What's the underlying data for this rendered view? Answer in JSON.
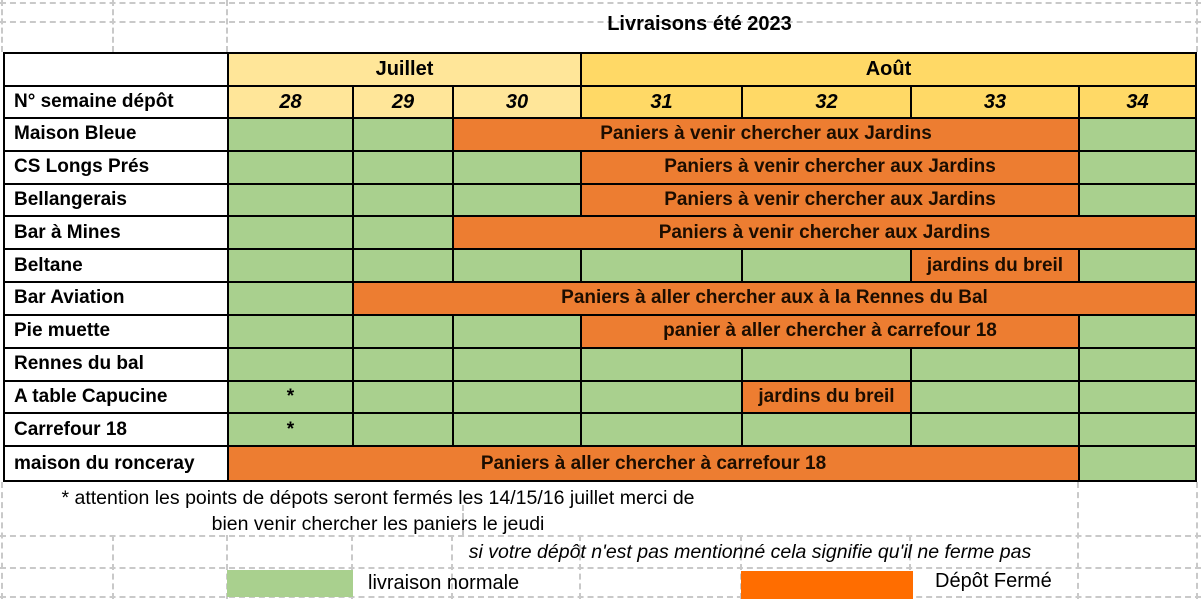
{
  "title": "Livraisons été 2023",
  "header": {
    "week_header_label": "N° semaine dépôt",
    "months": [
      {
        "label": "Juillet",
        "span": 3
      },
      {
        "label": "Août",
        "span": 4
      }
    ],
    "weeks": [
      "28",
      "29",
      "30",
      "31",
      "32",
      "33",
      "34"
    ]
  },
  "rows": [
    {
      "depot": "Maison Bleue",
      "cells": [
        {
          "c": "g"
        },
        {
          "c": "g"
        },
        {
          "c": "o",
          "span": 4,
          "t": "Paniers à venir chercher aux Jardins"
        },
        {
          "c": "g"
        }
      ]
    },
    {
      "depot": "CS Longs Prés",
      "cells": [
        {
          "c": "g"
        },
        {
          "c": "g"
        },
        {
          "c": "g"
        },
        {
          "c": "o",
          "span": 3,
          "t": "Paniers à venir chercher aux Jardins"
        },
        {
          "c": "g"
        }
      ]
    },
    {
      "depot": "Bellangerais",
      "cells": [
        {
          "c": "g"
        },
        {
          "c": "g"
        },
        {
          "c": "g"
        },
        {
          "c": "o",
          "span": 3,
          "t": "Paniers à venir chercher aux Jardins"
        },
        {
          "c": "g"
        }
      ]
    },
    {
      "depot": "Bar à Mines",
      "cells": [
        {
          "c": "g"
        },
        {
          "c": "g"
        },
        {
          "c": "o",
          "span": 5,
          "t": "Paniers à venir chercher aux Jardins"
        }
      ]
    },
    {
      "depot": "Beltane",
      "cells": [
        {
          "c": "g"
        },
        {
          "c": "g"
        },
        {
          "c": "g"
        },
        {
          "c": "g"
        },
        {
          "c": "g"
        },
        {
          "c": "o",
          "span": 1,
          "t": "jardins du breil"
        },
        {
          "c": "g"
        }
      ]
    },
    {
      "depot": "Bar Aviation",
      "cells": [
        {
          "c": "g"
        },
        {
          "c": "o",
          "span": 6,
          "t": "Paniers à aller chercher aux à la Rennes du Bal"
        }
      ]
    },
    {
      "depot": "Pie muette",
      "cells": [
        {
          "c": "g"
        },
        {
          "c": "g"
        },
        {
          "c": "g"
        },
        {
          "c": "o",
          "span": 3,
          "t": "panier à aller chercher à carrefour 18"
        },
        {
          "c": "g"
        }
      ]
    },
    {
      "depot": "Rennes du bal",
      "cells": [
        {
          "c": "g"
        },
        {
          "c": "g"
        },
        {
          "c": "g"
        },
        {
          "c": "g"
        },
        {
          "c": "g"
        },
        {
          "c": "g"
        },
        {
          "c": "g"
        }
      ]
    },
    {
      "depot": "A table Capucine",
      "cells": [
        {
          "c": "g",
          "t": "*"
        },
        {
          "c": "g"
        },
        {
          "c": "g"
        },
        {
          "c": "g"
        },
        {
          "c": "o",
          "span": 1,
          "t": "jardins du breil"
        },
        {
          "c": "g"
        },
        {
          "c": "g"
        }
      ]
    },
    {
      "depot": "Carrefour 18",
      "cells": [
        {
          "c": "g",
          "t": "*"
        },
        {
          "c": "g"
        },
        {
          "c": "g"
        },
        {
          "c": "g"
        },
        {
          "c": "g"
        },
        {
          "c": "g"
        },
        {
          "c": "g"
        }
      ]
    },
    {
      "depot": "maison du ronceray",
      "cells": [
        {
          "c": "o",
          "span": 6,
          "t": "Paniers à aller chercher à carrefour 18"
        },
        {
          "c": "g"
        }
      ]
    }
  ],
  "footnote": {
    "line1": "* attention les points de dépots seront fermés les 14/15/16 juillet merci de",
    "line2": "bien venir chercher les paniers le jeudi"
  },
  "note_italic": "si votre dépôt n'est pas mentionné cela signifie qu'il ne ferme pas",
  "legend": {
    "normal_label": "livraison normale",
    "closed_label": "Dépôt Fermé"
  },
  "colors": {
    "green": "#A9D08E",
    "orange": "#ED7D31",
    "legend_orange": "#FF6D00",
    "july_yellow": "#FFE699",
    "august_yellow": "#FFD966"
  }
}
